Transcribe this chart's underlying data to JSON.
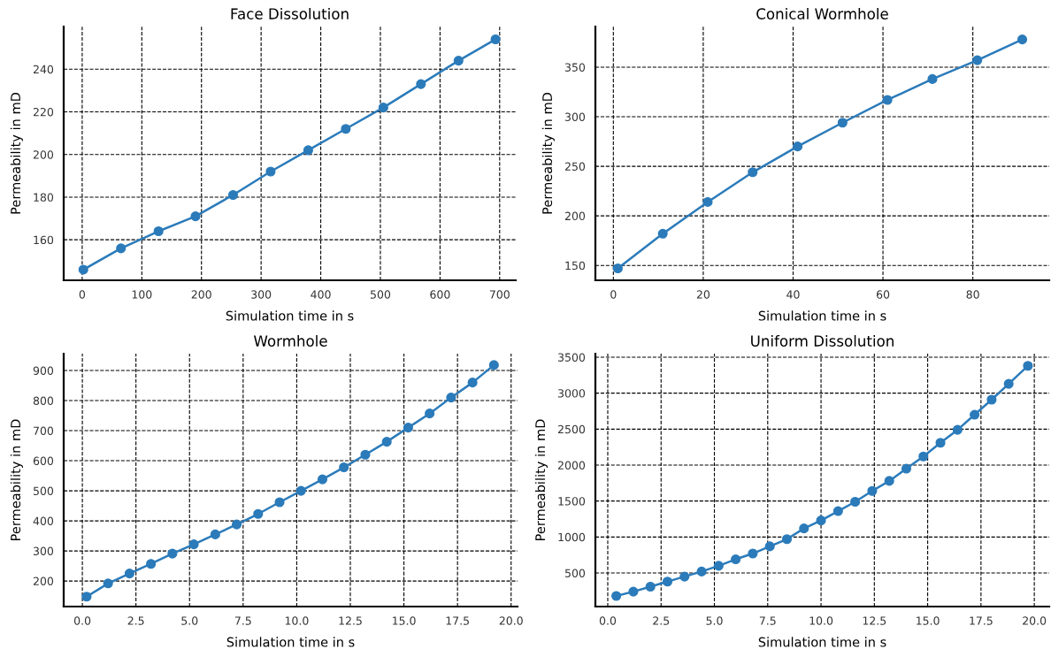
{
  "chart_data": [
    {
      "type": "line",
      "title": "Face Dissolution",
      "xlabel": "Simulation time in s",
      "ylabel": "Permeability in mD",
      "marker": "circle",
      "line_style": "solid",
      "grid": true,
      "x": [
        2,
        65,
        128,
        190,
        253,
        316,
        379,
        442,
        505,
        568,
        631,
        693
      ],
      "series": [
        {
          "color": "#2b7bba",
          "values": [
            146,
            156,
            164,
            171,
            181,
            192,
            202,
            212,
            222,
            233,
            244,
            254
          ]
        }
      ],
      "xlim": [
        -31,
        727
      ],
      "ylim": [
        141,
        260
      ],
      "xticks": [
        0,
        100,
        200,
        300,
        400,
        500,
        600,
        700
      ],
      "yticks": [
        160,
        180,
        200,
        220,
        240
      ]
    },
    {
      "type": "line",
      "title": "Conical Wormhole",
      "xlabel": "Simulation time in s",
      "ylabel": "Permeability in mD",
      "marker": "circle",
      "line_style": "solid",
      "grid": true,
      "x": [
        1,
        11,
        21,
        31,
        41,
        51,
        61,
        71,
        81,
        91
      ],
      "series": [
        {
          "color": "#2b7bba",
          "values": [
            147,
            182,
            214,
            244,
            270,
            294,
            317,
            338,
            357,
            378
          ]
        }
      ],
      "xlim": [
        -4,
        97
      ],
      "ylim": [
        135,
        391
      ],
      "xticks": [
        0,
        20,
        40,
        60,
        80
      ],
      "yticks": [
        150,
        200,
        250,
        300,
        350
      ]
    },
    {
      "type": "line",
      "title": "Wormhole",
      "xlabel": "Simulation time in s",
      "ylabel": "Permeability in mD",
      "marker": "circle",
      "line_style": "solid",
      "grid": true,
      "x": [
        0.2,
        1.2,
        2.2,
        3.2,
        4.2,
        5.2,
        6.2,
        7.2,
        8.2,
        9.2,
        10.2,
        11.2,
        12.2,
        13.2,
        14.2,
        15.2,
        16.2,
        17.2,
        18.2,
        19.2
      ],
      "series": [
        {
          "color": "#2b7bba",
          "values": [
            148,
            192,
            225,
            257,
            291,
            322,
            355,
            388,
            423,
            462,
            500,
            538,
            578,
            620,
            663,
            710,
            757,
            810,
            860,
            918
          ]
        }
      ],
      "xlim": [
        -0.87,
        20.3
      ],
      "ylim": [
        115,
        956
      ],
      "xticks": [
        {
          "value": 0,
          "label": "0.0"
        },
        2.5,
        {
          "value": 5,
          "label": "5.0"
        },
        7.5,
        {
          "value": 10,
          "label": "10.0"
        },
        12.5,
        {
          "value": 15,
          "label": "15.0"
        },
        17.5,
        {
          "value": 20,
          "label": "20.0"
        }
      ],
      "yticks": [
        200,
        300,
        400,
        500,
        600,
        700,
        800,
        900
      ]
    },
    {
      "type": "line",
      "title": "Uniform Dissolution",
      "xlabel": "Simulation time in s",
      "ylabel": "Permeability in mD",
      "marker": "circle",
      "line_style": "solid",
      "grid": true,
      "x": [
        0.4,
        1.2,
        2.0,
        2.8,
        3.6,
        4.4,
        5.2,
        6.0,
        6.8,
        7.6,
        8.4,
        9.2,
        10.0,
        10.8,
        11.6,
        12.4,
        13.2,
        14.0,
        14.8,
        15.6,
        16.4,
        17.2,
        18.0,
        18.8,
        19.7
      ],
      "series": [
        {
          "color": "#2b7bba",
          "values": [
            180,
            240,
            310,
            380,
            450,
            520,
            600,
            690,
            770,
            870,
            970,
            1120,
            1230,
            1360,
            1490,
            1640,
            1780,
            1950,
            2120,
            2310,
            2490,
            2700,
            2910,
            3130,
            3380
          ]
        }
      ],
      "xlim": [
        -0.58,
        20.7
      ],
      "ylim": [
        33,
        3549
      ],
      "xticks": [
        {
          "value": 0,
          "label": "0.0"
        },
        2.5,
        {
          "value": 5,
          "label": "5.0"
        },
        7.5,
        {
          "value": 10,
          "label": "10.0"
        },
        12.5,
        {
          "value": 15,
          "label": "15.0"
        },
        17.5,
        {
          "value": 20,
          "label": "20.0"
        }
      ],
      "yticks": [
        500,
        1000,
        1500,
        2000,
        2500,
        3000,
        3500
      ]
    }
  ]
}
